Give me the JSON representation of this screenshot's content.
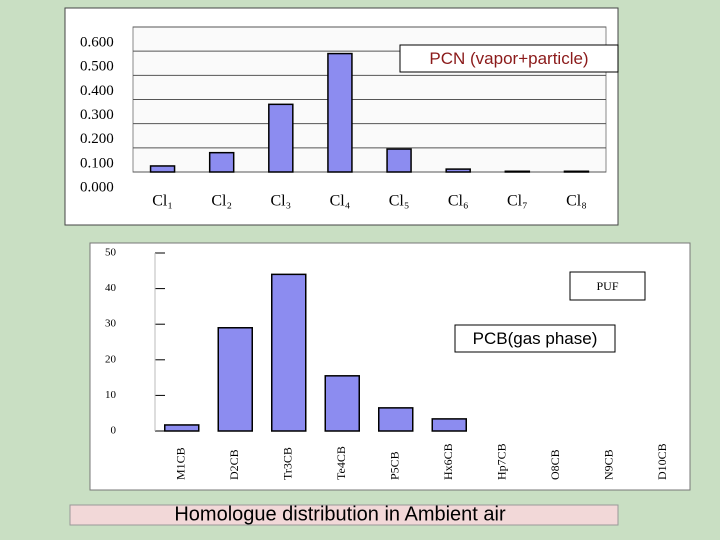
{
  "chart_data": [
    {
      "type": "bar",
      "annotation": "PCN (vapor+particle)",
      "categories": [
        "Cl₁",
        "Cl₂",
        "Cl₃",
        "Cl₄",
        "Cl₅",
        "Cl₆",
        "Cl₇",
        "Cl₈"
      ],
      "values": [
        0.025,
        0.08,
        0.28,
        0.49,
        0.095,
        0.012,
        0.003,
        0.003
      ],
      "color": "#8c8cf0",
      "ylim": [
        0,
        0.6
      ],
      "yticks": [
        {
          "value": 0,
          "label": "0.000"
        },
        {
          "value": 0.1,
          "label": "0.100"
        },
        {
          "value": 0.2,
          "label": "0.200"
        },
        {
          "value": 0.3,
          "label": "0.300"
        },
        {
          "value": 0.4,
          "label": "0.400"
        },
        {
          "value": 0.5,
          "label": "0.500"
        },
        {
          "value": 0.6,
          "label": "0.600"
        }
      ],
      "grid": true
    },
    {
      "type": "bar",
      "annotations": [
        "PUF",
        "PCB(gas phase)"
      ],
      "categories": [
        "M1CB",
        "D2CB",
        "Tr3CB",
        "Te4CB",
        "P5CB",
        "Hx6CB",
        "Hp7CB",
        "O8CB",
        "N9CB",
        "D10CB"
      ],
      "values": [
        1.7,
        29,
        44,
        15.5,
        6.5,
        3.4,
        0,
        0,
        0,
        0
      ],
      "color": "#8c8cf0",
      "ylim": [
        0,
        50
      ],
      "yticks": [
        0,
        10,
        20,
        30,
        40,
        50
      ],
      "grid": false
    }
  ],
  "caption": "Homologue distribution in Ambient air"
}
